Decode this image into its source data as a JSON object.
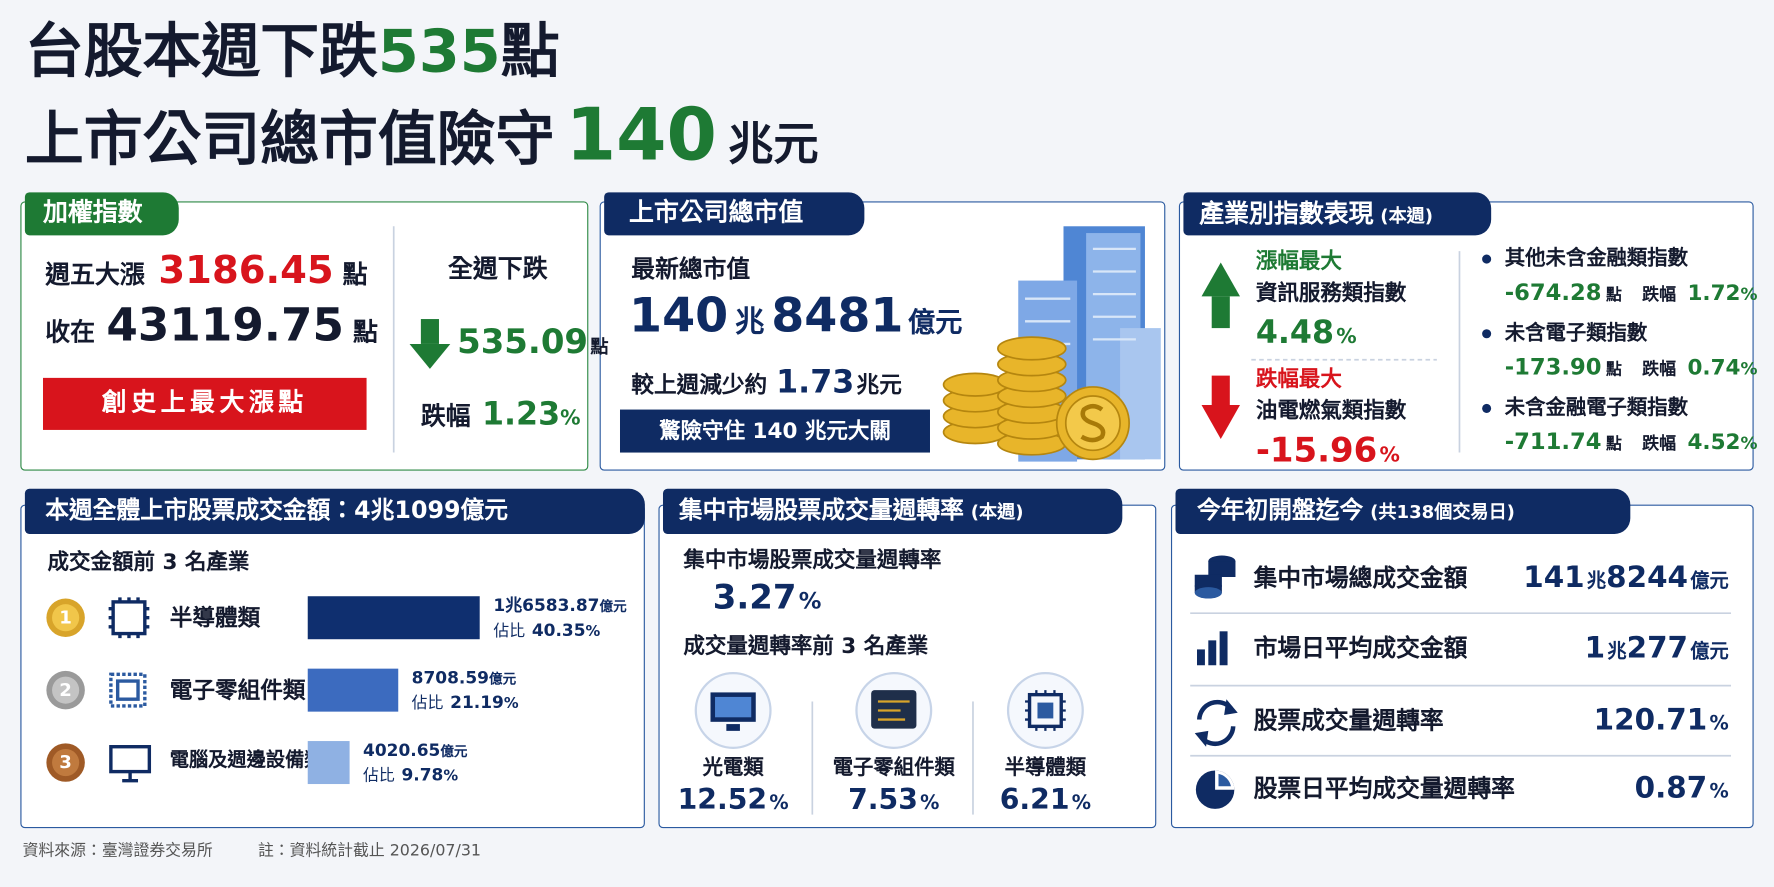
{
  "title": {
    "line1": "台股本週下跌",
    "line1_number": "535",
    "line1_unit": "點",
    "line2": "上市公司總市值險守",
    "line2_number": "140",
    "line2_unit": "兆元"
  },
  "index_panel": {
    "heading": "加權指數",
    "friday_label": "週五大漲",
    "friday_points": "3186.45",
    "friday_unit": "點",
    "close_label": "收在",
    "close_points": "43119.75",
    "close_unit": "點",
    "badge": "創史上最大漲點",
    "week_label": "全週下跌",
    "week_points": "535.09",
    "week_unit": "點",
    "change_label": "跌幅",
    "change_pct": "1.23",
    "change_unit": "%"
  },
  "market_cap_panel": {
    "heading": "上市公司總市值",
    "latest_label": "最新總市值",
    "cap_trillion": "140",
    "cap_trillion_unit": "兆",
    "cap_hundred_million": "8481",
    "cap_hundred_million_unit": "億元",
    "compare_label": "較上週減少約",
    "compare_value": "1.73",
    "compare_unit": "兆元",
    "banner": "驚險守住 140 兆元大關"
  },
  "industry_panel": {
    "heading": "產業別指數表現",
    "heading_note": "(本週)",
    "top": {
      "label": "漲幅最大",
      "name": "資訊服務類指數",
      "pct": "4.48",
      "unit": "%"
    },
    "bottom": {
      "label": "跌幅最大",
      "name": "油電燃氣類指數",
      "pct": "-15.96",
      "unit": "%"
    },
    "others": [
      {
        "name": "其他未含金融類指數",
        "points": "-674.28",
        "points_unit": "點",
        "change_label": "跌幅",
        "pct": "1.72",
        "unit": "%"
      },
      {
        "name": "未含電子類指數",
        "points": "-173.90",
        "points_unit": "點",
        "change_label": "跌幅",
        "pct": "0.74",
        "unit": "%"
      },
      {
        "name": "未含金融電子類指數",
        "points": "-711.74",
        "points_unit": "點",
        "change_label": "跌幅",
        "pct": "4.52",
        "unit": "%"
      }
    ]
  },
  "turnover_value_panel": {
    "heading": "本週全體上市股票成交金額：4兆1099億元",
    "subheading": "成交金額前 3 名產業",
    "rows": [
      {
        "rank": "1",
        "name": "半導體類",
        "amount": "1兆6583.87",
        "amount_unit": "億元",
        "share_label": "佔比",
        "share": 40.35,
        "share_unit": "%"
      },
      {
        "rank": "2",
        "name": "電子零組件類",
        "amount": "8708.59",
        "amount_unit": "億元",
        "share_label": "佔比",
        "share": 21.19,
        "share_unit": "%"
      },
      {
        "rank": "3",
        "name": "電腦及週邊設備類",
        "amount": "4020.65",
        "amount_unit": "億元",
        "share_label": "佔比",
        "share": 9.78,
        "share_unit": "%"
      }
    ]
  },
  "turnover_rate_panel": {
    "heading": "集中市場股票成交量週轉率",
    "heading_note": "(本週)",
    "rate_label": "集中市場股票成交量週轉率",
    "rate": "3.27",
    "rate_unit": "%",
    "subheading": "成交量週轉率前 3 名產業",
    "industries": [
      {
        "name": "光電類",
        "rate": "12.52",
        "unit": "%"
      },
      {
        "name": "電子零組件類",
        "rate": "7.53",
        "unit": "%"
      },
      {
        "name": "半導體類",
        "rate": "6.21",
        "unit": "%"
      }
    ]
  },
  "ytd_panel": {
    "heading": "今年初開盤迄今",
    "heading_note": "(共138個交易日)",
    "rows": [
      {
        "label": "集中市場總成交金額",
        "parts": [
          {
            "text": "141",
            "unit": "兆"
          },
          {
            "text": "8244",
            "unit": "億元"
          }
        ]
      },
      {
        "label": "市場日平均成交金額",
        "parts": [
          {
            "text": "1",
            "unit": "兆"
          },
          {
            "text": "277",
            "unit": "億元"
          }
        ]
      },
      {
        "label": "股票成交量週轉率",
        "parts": [
          {
            "text": "120.71",
            "unit": "%"
          }
        ]
      },
      {
        "label": "股票日平均成交量週轉率",
        "parts": [
          {
            "text": "0.87",
            "unit": "%"
          }
        ]
      }
    ]
  },
  "footer": {
    "source": "資料來源：臺灣證券交易所",
    "note": "註：資料統計截止 2026/07/31"
  }
}
